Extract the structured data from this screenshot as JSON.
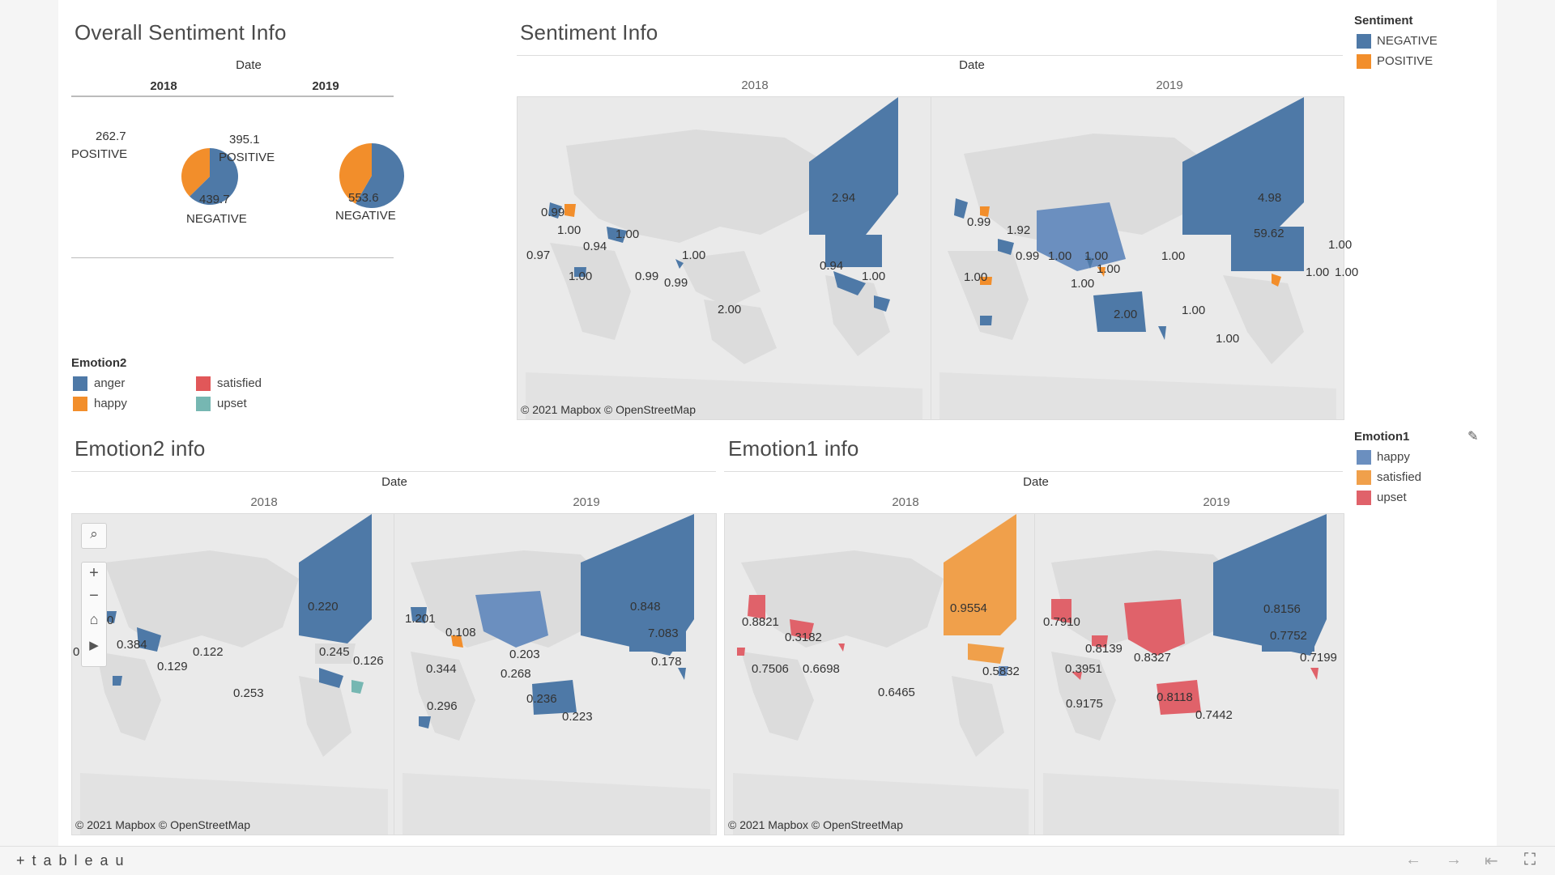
{
  "overall": {
    "title": "Overall Sentiment Info",
    "date_header": "Date",
    "years": [
      "2018",
      "2019"
    ],
    "pies": [
      {
        "positive_value": "262.7",
        "positive_label": "POSITIVE",
        "negative_value": "439.7",
        "negative_label": "NEGATIVE",
        "positive": 262.7,
        "negative": 439.7
      },
      {
        "positive_value": "395.1",
        "positive_label": "POSITIVE",
        "negative_value": "553.6",
        "negative_label": "NEGATIVE",
        "positive": 395.1,
        "negative": 553.6
      }
    ]
  },
  "sentiment_map": {
    "title": "Sentiment Info",
    "date_header": "Date",
    "years": [
      "2018",
      "2019"
    ],
    "credit": "© 2021 Mapbox  © OpenStreetMap",
    "labels_2018": [
      "0.99",
      "1.00",
      "0.94",
      "1.00",
      "0.97",
      "1.00",
      "0.99",
      "0.99",
      "1.00",
      "2.00",
      "2.94",
      "0.94",
      "1.00"
    ],
    "labels_2019": [
      "0.99",
      "1.92",
      "0.99",
      "1.00",
      "1.00",
      "1.00",
      "1.00",
      "1.00",
      "2.00",
      "1.00",
      "1.00",
      "4.98",
      "59.62",
      "1.00",
      "1.00",
      "1.00",
      "1.00"
    ]
  },
  "sentiment_legend": {
    "title": "Sentiment",
    "items": [
      {
        "label": "NEGATIVE",
        "color": "#4e79a7"
      },
      {
        "label": "POSITIVE",
        "color": "#f28e2b"
      }
    ]
  },
  "emotion2_legend": {
    "title": "Emotion2",
    "items": [
      {
        "label": "anger",
        "color": "#4e79a7"
      },
      {
        "label": "satisfied",
        "color": "#e15759"
      },
      {
        "label": "happy",
        "color": "#f28e2b"
      },
      {
        "label": "upset",
        "color": "#76b7b2"
      }
    ]
  },
  "emotion2_map": {
    "title": "Emotion2 info",
    "date_header": "Date",
    "years": [
      "2018",
      "2019"
    ],
    "credit": "© 2021 Mapbox  © OpenStreetMap",
    "labels_2018": [
      "0",
      "0.384",
      "0.129",
      "0.122",
      "0.253",
      "0.220",
      "0.245",
      "0.126",
      "0"
    ],
    "labels_2019": [
      "1.201",
      "0.108",
      "0.344",
      "0.203",
      "0.268",
      "0.236",
      "0.223",
      "0.296",
      "0.848",
      "7.083",
      "0.178"
    ]
  },
  "emotion1_legend": {
    "title": "Emotion1",
    "items": [
      {
        "label": "happy",
        "color": "#6b8fbf"
      },
      {
        "label": "satisfied",
        "color": "#f0a04b"
      },
      {
        "label": "upset",
        "color": "#e0626a"
      }
    ]
  },
  "emotion1_map": {
    "title": "Emotion1 info",
    "date_header": "Date",
    "years": [
      "2018",
      "2019"
    ],
    "credit": "© 2021 Mapbox  © OpenStreetMap",
    "labels_2018": [
      "0.8821",
      "0.3182",
      "0.7506",
      "0.6698",
      "0.6465",
      "0.9554",
      "0.5832"
    ],
    "labels_2019": [
      "0.7910",
      "0.8139",
      "0.8327",
      "0.3951",
      "0.9175",
      "0.8118",
      "0.7442",
      "0.8156",
      "0.7752",
      "0.7199"
    ]
  },
  "bottom": {
    "logo": "+ t a b l e a u"
  }
}
